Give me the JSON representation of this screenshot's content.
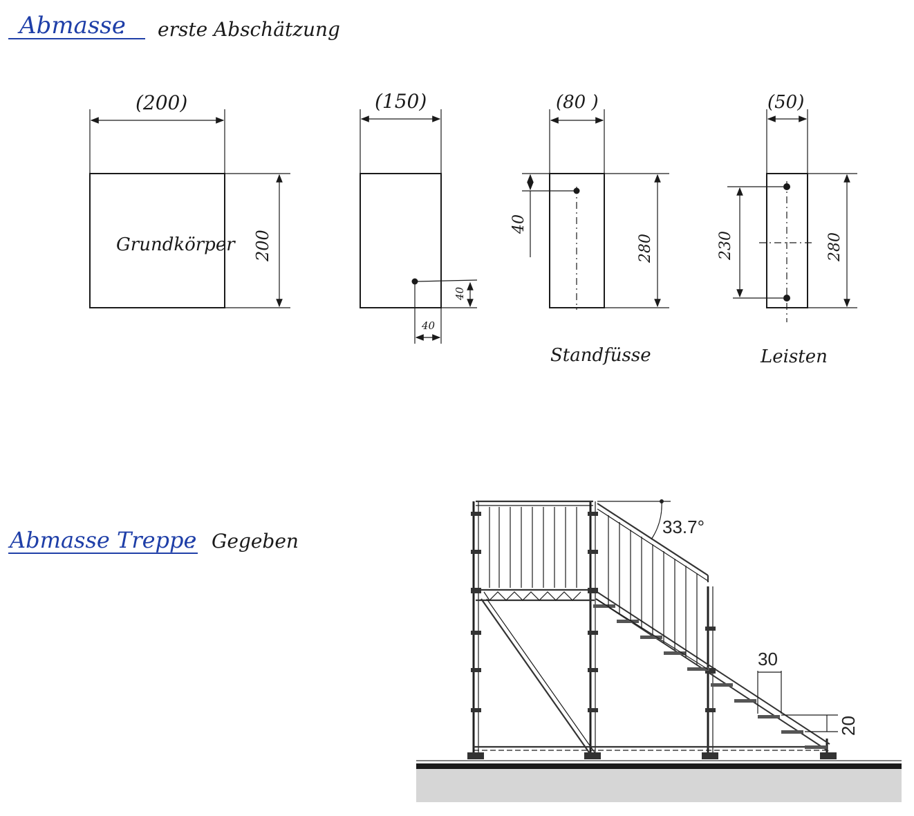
{
  "header": {
    "title": "Abmasse",
    "colon": ":",
    "subtitle": "erste Abschätzung"
  },
  "views": [
    {
      "width_label": "(200)",
      "height_label": "200",
      "inner_label": "Grundkörper",
      "caption": ""
    },
    {
      "width_label": "(150)",
      "hole_label_vertical": "40",
      "hole_label_horizontal": "40",
      "caption": ""
    },
    {
      "width_label": "(80 )",
      "offset_label": "40",
      "height_label": "280",
      "caption": "Standfüsse"
    },
    {
      "width_label": "(50)",
      "spacing_label": "230",
      "height_label": "280",
      "caption": "Leisten"
    }
  ],
  "stair_section": {
    "title": "Abmasse Treppe",
    "colon": ":",
    "subtitle": "Gegeben",
    "angle_label": "33.7°",
    "step_depth_label": "30",
    "step_height_label": "20"
  },
  "colors": {
    "ink": "#1a1a1a",
    "accent": "#1f3fa8",
    "ground": "#d6d6d6"
  }
}
